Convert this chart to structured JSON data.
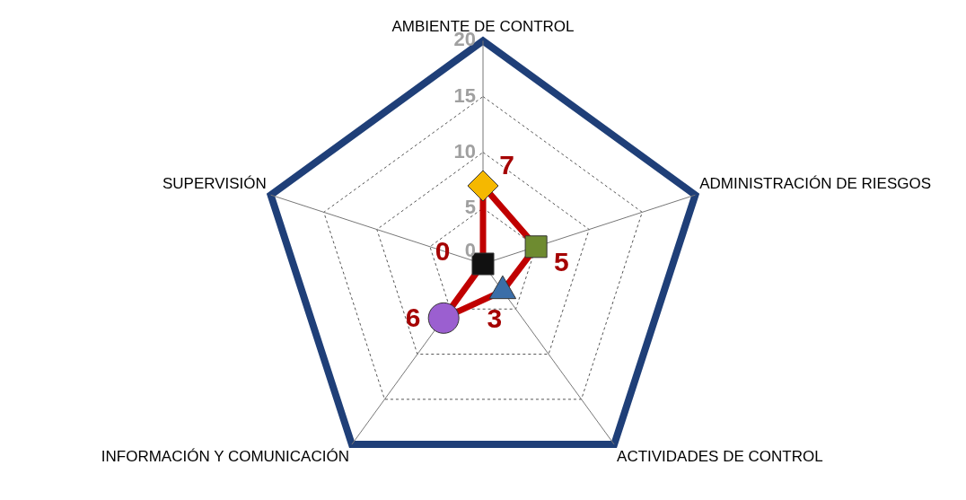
{
  "chart_data": {
    "type": "radar",
    "categories": [
      "AMBIENTE DE CONTROL",
      "ADMINISTRACIÓN DE RIESGOS",
      "ACTIVIDADES DE CONTROL",
      "INFORMACIÓN Y COMUNICACIÓN",
      "SUPERVISIÓN"
    ],
    "series": [
      {
        "color": "#c00000",
        "values": [
          7,
          5,
          3,
          6,
          0
        ],
        "colors": [
          "#f5b800",
          "#6e8b30",
          "#3b6ea8",
          "#9b5fd0",
          "#111111"
        ]
      }
    ],
    "marker": [
      "diamond",
      "square",
      "triangle",
      "circle",
      "square"
    ],
    "ylim": [
      0,
      20
    ],
    "yticks": [
      0,
      5,
      10,
      15,
      20
    ],
    "grid": true,
    "data_labels": true,
    "legend": false
  }
}
